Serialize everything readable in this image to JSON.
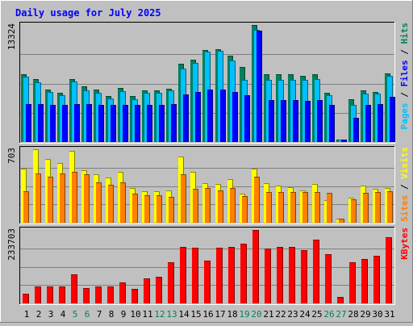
{
  "chart_data": {
    "type": "bar",
    "title": "Daily usage for July 2025",
    "categories": [
      "1",
      "2",
      "3",
      "4",
      "5",
      "6",
      "7",
      "8",
      "9",
      "10",
      "11",
      "12",
      "13",
      "14",
      "15",
      "16",
      "17",
      "18",
      "19",
      "20",
      "21",
      "22",
      "23",
      "24",
      "25",
      "26",
      "27",
      "28",
      "29",
      "30",
      "31"
    ],
    "weekend_days": [
      "5",
      "6",
      "12",
      "13",
      "19",
      "20",
      "26",
      "27"
    ],
    "panels": [
      {
        "name": "hits-files-pages",
        "ymax_label": "13324",
        "ymax": 13324,
        "legend": [
          {
            "text": "Pages",
            "color": "#00c0ff"
          },
          {
            "text": " / ",
            "color": "#000000"
          },
          {
            "text": "Files",
            "color": "#0000ff"
          },
          {
            "text": " / ",
            "color": "#000000"
          },
          {
            "text": "Hits",
            "color": "#00805f"
          }
        ],
        "series": [
          {
            "name": "Hits",
            "color": "#00805f",
            "values": [
              7700,
              7200,
              6000,
              5600,
              7200,
              6300,
              6000,
              5200,
              6200,
              5200,
              5900,
              5900,
              6100,
              8900,
              9400,
              10500,
              10600,
              9800,
              8500,
              13324,
              7700,
              7700,
              7700,
              7500,
              7700,
              5600,
              320,
              4900,
              5900,
              5700,
              7800
            ]
          },
          {
            "name": "Files",
            "color": "#00c0ff",
            "values": [
              7400,
              6800,
              5700,
              5300,
              6900,
              5900,
              5600,
              5000,
              5800,
              4900,
              5600,
              5600,
              5900,
              8400,
              9000,
              10300,
              10400,
              9300,
              7100,
              12800,
              7100,
              7100,
              7100,
              7100,
              7200,
              5300,
              320,
              4200,
              5500,
              5500,
              7500
            ]
          },
          {
            "name": "Pages",
            "color": "#0000ff",
            "values": [
              4300,
              4300,
              4200,
              4200,
              4300,
              4300,
              4200,
              4200,
              4200,
              4200,
              4200,
              4200,
              4300,
              5400,
              5700,
              6000,
              6000,
              5700,
              5300,
              12700,
              4800,
              4800,
              4800,
              4700,
              4800,
              4200,
              320,
              2800,
              4200,
              4300,
              5100
            ]
          }
        ]
      },
      {
        "name": "visits-sites",
        "ymax_label": "703",
        "ymax": 703,
        "legend": [
          {
            "text": "Sites",
            "color": "#ff8000"
          },
          {
            "text": " / ",
            "color": "#000000"
          },
          {
            "text": "Visits",
            "color": "#ffff00"
          }
        ],
        "series": [
          {
            "name": "Visits",
            "color": "#ffff00",
            "values": [
              520,
              703,
              610,
              575,
              690,
              505,
              460,
              435,
              485,
              330,
              300,
              300,
              310,
              630,
              485,
              380,
              370,
              420,
              280,
              520,
              375,
              355,
              340,
              310,
              370,
              220,
              40,
              240,
              355,
              325,
              330
            ]
          },
          {
            "name": "Sites",
            "color": "#ff8000",
            "values": [
              305,
              470,
              440,
              475,
              490,
              460,
              385,
              365,
              385,
              280,
              260,
              260,
              245,
              460,
              325,
              330,
              310,
              330,
              255,
              440,
              290,
              290,
              295,
              295,
              295,
              285,
              40,
              225,
              285,
              295,
              300
            ]
          }
        ]
      },
      {
        "name": "kbytes",
        "ymax_label": "233703",
        "ymax": 233703,
        "legend": [
          {
            "text": "KBytes",
            "color": "#ff0000"
          }
        ],
        "series": [
          {
            "name": "KBytes",
            "color": "#ff0000",
            "values": [
              32000,
              55000,
              55000,
              55000,
              93000,
              50000,
              55000,
              55000,
              67000,
              46000,
              80000,
              86000,
              131000,
              180000,
              177000,
              137000,
              178000,
              180000,
              190000,
              233703,
              175000,
              180000,
              180000,
              169000,
              204000,
              157000,
              21000,
              130000,
              141000,
              151000,
              210000
            ]
          }
        ]
      }
    ]
  }
}
